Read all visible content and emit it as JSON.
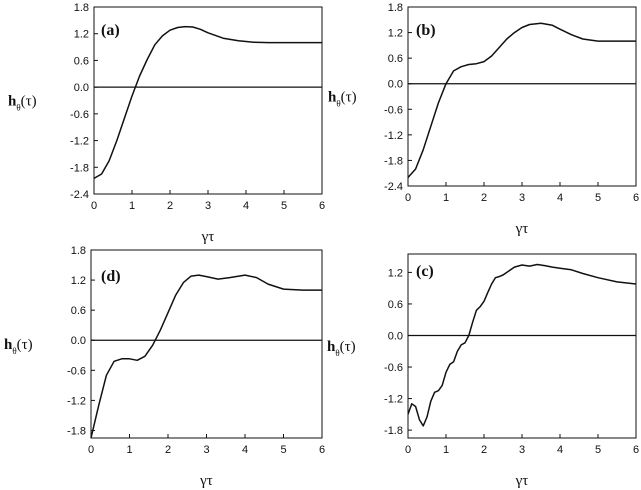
{
  "chart_data": [
    {
      "type": "line",
      "panel_label": "(a)",
      "ylabel_main": "h",
      "ylabel_sub": "θ",
      "ylabel_arg": "(τ)",
      "xlabel": "γτ",
      "xlim": [
        0,
        6
      ],
      "ylim": [
        -2.4,
        1.8
      ],
      "xticks": [
        0,
        1,
        2,
        3,
        4,
        5,
        6
      ],
      "yticks": [
        1.8,
        1.2,
        0.6,
        0.0,
        -0.6,
        -1.2,
        -1.8,
        -2.4
      ],
      "ytick_labels": [
        "1.8",
        "1.2",
        "0.6",
        "0.0",
        "-0.6",
        "-1.2",
        "-1.8",
        "-2.4"
      ],
      "zero_line": true,
      "x": [
        0,
        0.2,
        0.4,
        0.6,
        0.8,
        1.0,
        1.2,
        1.4,
        1.6,
        1.8,
        2.0,
        2.2,
        2.4,
        2.6,
        2.8,
        3.0,
        3.4,
        3.8,
        4.2,
        4.6,
        5.0,
        5.5,
        6.0
      ],
      "y": [
        -2.05,
        -1.95,
        -1.65,
        -1.2,
        -0.7,
        -0.2,
        0.25,
        0.62,
        0.95,
        1.15,
        1.28,
        1.34,
        1.36,
        1.35,
        1.3,
        1.22,
        1.1,
        1.04,
        1.01,
        1.0,
        1.0,
        1.0,
        1.0
      ]
    },
    {
      "type": "line",
      "panel_label": "(b)",
      "ylabel_main": "h",
      "ylabel_sub": "θ",
      "ylabel_arg": "(τ)",
      "xlabel": "γτ",
      "xlim": [
        0,
        6
      ],
      "ylim": [
        -2.4,
        1.8
      ],
      "xticks": [
        0,
        1,
        2,
        3,
        4,
        5,
        6
      ],
      "yticks": [
        1.8,
        1.2,
        0.6,
        0.0,
        -0.6,
        -1.2,
        -1.8,
        -2.4
      ],
      "ytick_labels": [
        "1.8",
        "1.2",
        "0.6",
        "0.0",
        "-0.6",
        "-1.2",
        "-1.8",
        "-2.4"
      ],
      "zero_line": true,
      "x": [
        0,
        0.2,
        0.4,
        0.6,
        0.8,
        1.0,
        1.2,
        1.4,
        1.6,
        1.8,
        2.0,
        2.2,
        2.4,
        2.6,
        2.8,
        3.0,
        3.2,
        3.5,
        3.8,
        4.0,
        4.3,
        4.6,
        5.0,
        5.5,
        6.0
      ],
      "y": [
        -2.2,
        -2.0,
        -1.55,
        -1.0,
        -0.45,
        0.0,
        0.3,
        0.4,
        0.45,
        0.47,
        0.52,
        0.65,
        0.85,
        1.05,
        1.2,
        1.32,
        1.39,
        1.42,
        1.37,
        1.28,
        1.15,
        1.05,
        1.0,
        1.0,
        1.0
      ]
    },
    {
      "type": "line",
      "panel_label": "(d)",
      "ylabel_main": "h",
      "ylabel_sub": "θ",
      "ylabel_arg": "(τ)",
      "xlabel": "γτ",
      "xlim": [
        0,
        6
      ],
      "ylim": [
        -1.95,
        1.8
      ],
      "xticks": [
        0,
        1,
        2,
        3,
        4,
        5,
        6
      ],
      "yticks": [
        1.8,
        1.2,
        0.6,
        0.0,
        -0.6,
        -1.2,
        -1.8
      ],
      "ytick_labels": [
        "1.8",
        "1.2",
        "0.6",
        "0.0",
        "-0.6",
        "-1.2",
        "-1.8"
      ],
      "zero_line": true,
      "x": [
        0,
        0.2,
        0.4,
        0.6,
        0.8,
        1.0,
        1.2,
        1.4,
        1.6,
        1.8,
        2.0,
        2.2,
        2.4,
        2.6,
        2.8,
        3.0,
        3.3,
        3.6,
        4.0,
        4.3,
        4.6,
        5.0,
        5.5,
        6.0
      ],
      "y": [
        -1.95,
        -1.3,
        -0.7,
        -0.42,
        -0.37,
        -0.37,
        -0.4,
        -0.32,
        -0.1,
        0.2,
        0.55,
        0.9,
        1.15,
        1.28,
        1.3,
        1.27,
        1.22,
        1.25,
        1.3,
        1.25,
        1.12,
        1.02,
        1.0,
        1.0
      ]
    },
    {
      "type": "line",
      "panel_label": "(c)",
      "ylabel_main": "h",
      "ylabel_sub": "θ",
      "ylabel_arg": "(τ)",
      "xlabel": "γτ",
      "xlim": [
        0,
        6
      ],
      "ylim": [
        -1.95,
        1.55
      ],
      "xticks": [
        0,
        1,
        2,
        3,
        4,
        5,
        6
      ],
      "yticks": [
        1.2,
        0.6,
        0.0,
        -0.6,
        -1.2,
        -1.8
      ],
      "ytick_labels": [
        "1.2",
        "0.6",
        "0.0",
        "-0.6",
        "-1.2",
        "-1.8"
      ],
      "zero_line": true,
      "x": [
        0,
        0.1,
        0.2,
        0.3,
        0.4,
        0.5,
        0.6,
        0.7,
        0.8,
        0.9,
        1.0,
        1.1,
        1.2,
        1.3,
        1.4,
        1.5,
        1.6,
        1.7,
        1.8,
        1.9,
        2.0,
        2.1,
        2.2,
        2.3,
        2.4,
        2.5,
        2.6,
        2.8,
        3.0,
        3.2,
        3.4,
        3.6,
        3.8,
        4.0,
        4.3,
        4.6,
        5.0,
        5.5,
        6.0
      ],
      "y": [
        -1.5,
        -1.3,
        -1.35,
        -1.6,
        -1.72,
        -1.55,
        -1.25,
        -1.08,
        -1.05,
        -0.95,
        -0.7,
        -0.55,
        -0.5,
        -0.3,
        -0.18,
        -0.14,
        0.0,
        0.25,
        0.48,
        0.55,
        0.65,
        0.82,
        0.98,
        1.1,
        1.12,
        1.15,
        1.2,
        1.3,
        1.34,
        1.32,
        1.35,
        1.33,
        1.3,
        1.28,
        1.25,
        1.18,
        1.1,
        1.02,
        0.98
      ]
    }
  ]
}
